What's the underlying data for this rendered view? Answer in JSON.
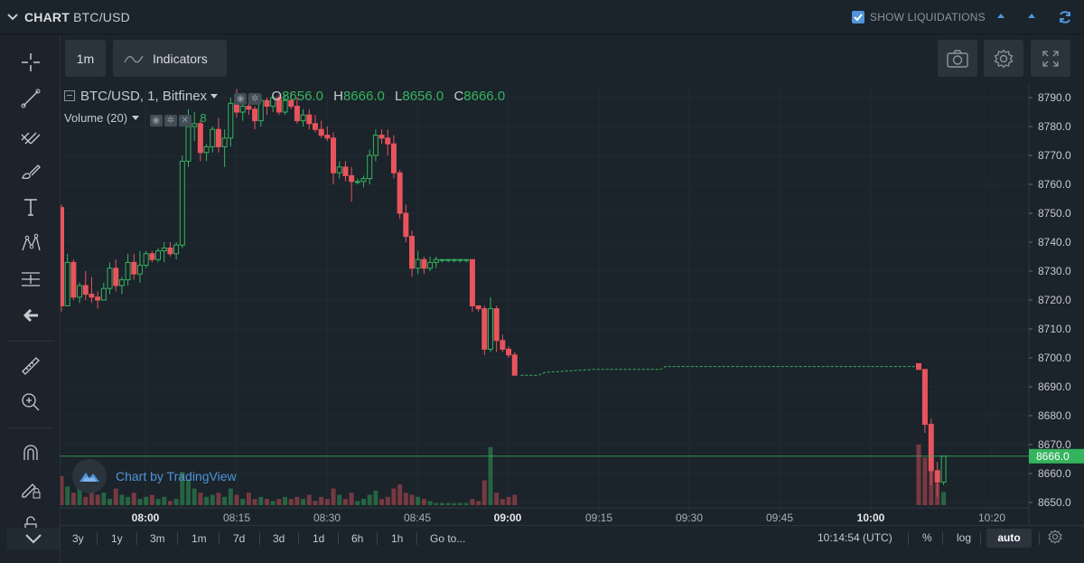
{
  "header": {
    "section": "CHART",
    "pair": "BTC/USD",
    "liquidations_label": "SHOW LIQUIDATIONS",
    "liquidations_checked": true
  },
  "toolbar": {
    "interval_label": "1m",
    "indicators_label": "Indicators"
  },
  "left_tools": [
    "crosshair-icon",
    "trend-line-icon",
    "pitchfork-icon",
    "brush-icon",
    "text-icon",
    "pattern-icon",
    "measure-lines-icon",
    "back-arrow-icon",
    "ruler-icon",
    "zoom-in-icon",
    "magnet-icon",
    "lock-drawing-icon",
    "lock-icon"
  ],
  "legend": {
    "symbol": "BTC/USD, 1, Bitfinex",
    "o_label": "O",
    "o_value": "8656.0",
    "h_label": "H",
    "h_value": "8666.0",
    "l_label": "L",
    "l_value": "8656.0",
    "c_label": "C",
    "c_value": "8666.0",
    "volume_label": "Volume (20)",
    "volume_value": "8"
  },
  "watermark": "Chart by TradingView",
  "bottom": {
    "ranges": [
      "3y",
      "1y",
      "3m",
      "1m",
      "7d",
      "3d",
      "1d",
      "6h",
      "1h"
    ],
    "goto_label": "Go to...",
    "time": "10:14:54 (UTC)",
    "percent_label": "%",
    "log_label": "log",
    "auto_label": "auto"
  },
  "colors": {
    "up": "#35b45e",
    "down": "#e8545c",
    "accent": "#4f95d9",
    "background": "#1b232b"
  },
  "chart_data": {
    "type": "candlestick",
    "y_ticks": [
      "8790.0",
      "8780.0",
      "8770.0",
      "8760.0",
      "8750.0",
      "8740.0",
      "8730.0",
      "8720.0",
      "8710.0",
      "8700.0",
      "8690.0",
      "8680.0",
      "8670.0",
      "8660.0",
      "8650.0"
    ],
    "y_range": [
      8646,
      8793
    ],
    "x_ticks": [
      "08:00",
      "08:15",
      "08:30",
      "08:45",
      "09:00",
      "09:15",
      "09:30",
      "09:45",
      "10:00",
      "10:20"
    ],
    "last_price": "8666.0",
    "last_price_value": 8666.0,
    "candles": [
      [
        8752,
        8753,
        8716,
        8718
      ],
      [
        8718,
        8736,
        8718,
        8733
      ],
      [
        8733,
        8734,
        8720,
        8721
      ],
      [
        8721,
        8726,
        8719,
        8725
      ],
      [
        8725,
        8730,
        8720,
        8722
      ],
      [
        8722,
        8728,
        8719,
        8721
      ],
      [
        8721,
        8723,
        8717,
        8720
      ],
      [
        8720,
        8726,
        8720,
        8724
      ],
      [
        8724,
        8733,
        8722,
        8731
      ],
      [
        8731,
        8734,
        8723,
        8725
      ],
      [
        8725,
        8728,
        8722,
        8727
      ],
      [
        8727,
        8736,
        8725,
        8733
      ],
      [
        8733,
        8736,
        8727,
        8729
      ],
      [
        8729,
        8737,
        8726,
        8732
      ],
      [
        8732,
        8737,
        8731,
        8736
      ],
      [
        8736,
        8737,
        8733,
        8734
      ],
      [
        8734,
        8738,
        8733,
        8737
      ],
      [
        8737,
        8740,
        8733,
        8738
      ],
      [
        8738,
        8740,
        8735,
        8736
      ],
      [
        8736,
        8740,
        8734,
        8739
      ],
      [
        8739,
        8770,
        8738,
        8768
      ],
      [
        8768,
        8786,
        8766,
        8780
      ],
      [
        8780,
        8785,
        8775,
        8781
      ],
      [
        8781,
        8782,
        8768,
        8771
      ],
      [
        8771,
        8774,
        8768,
        8773
      ],
      [
        8773,
        8780,
        8771,
        8779
      ],
      [
        8779,
        8783,
        8771,
        8773
      ],
      [
        8773,
        8779,
        8766,
        8776
      ],
      [
        8776,
        8790,
        8773,
        8788
      ],
      [
        8788,
        8793,
        8783,
        8785
      ],
      [
        8785,
        8791,
        8782,
        8787
      ],
      [
        8787,
        8790,
        8784,
        8786
      ],
      [
        8786,
        8787,
        8779,
        8782
      ],
      [
        8782,
        8791,
        8780,
        8789
      ],
      [
        8789,
        8790,
        8784,
        8787
      ],
      [
        8787,
        8791,
        8785,
        8790
      ],
      [
        8790,
        8791,
        8784,
        8785
      ],
      [
        8785,
        8791,
        8784,
        8789
      ],
      [
        8789,
        8792,
        8786,
        8787
      ],
      [
        8787,
        8790,
        8781,
        8782
      ],
      [
        8782,
        8786,
        8780,
        8784
      ],
      [
        8784,
        8786,
        8779,
        8781
      ],
      [
        8781,
        8784,
        8778,
        8779
      ],
      [
        8779,
        8782,
        8776,
        8777
      ],
      [
        8777,
        8780,
        8775,
        8776
      ],
      [
        8776,
        8778,
        8760,
        8764
      ],
      [
        8764,
        8768,
        8762,
        8766
      ],
      [
        8766,
        8768,
        8761,
        8763
      ],
      [
        8763,
        8766,
        8754,
        8761
      ],
      [
        8761,
        8762,
        8760,
        8761
      ],
      [
        8761,
        8763,
        8759,
        8762
      ],
      [
        8762,
        8772,
        8760,
        8770
      ],
      [
        8770,
        8779,
        8768,
        8777
      ],
      [
        8777,
        8779,
        8774,
        8776
      ],
      [
        8776,
        8779,
        8770,
        8774
      ],
      [
        8774,
        8777,
        8762,
        8764
      ],
      [
        8764,
        8765,
        8748,
        8750
      ],
      [
        8750,
        8753,
        8740,
        8742
      ],
      [
        8742,
        8744,
        8728,
        8731
      ],
      [
        8731,
        8737,
        8729,
        8734
      ],
      [
        8734,
        8735,
        8729,
        8731
      ],
      [
        8731,
        8735,
        8730,
        8733
      ],
      [
        8733,
        8735,
        8731,
        8734
      ],
      [
        8734,
        8734,
        8733,
        8734
      ],
      [
        8734,
        8734,
        8733,
        8734
      ],
      [
        8734,
        8734,
        8733,
        8734
      ],
      [
        8734,
        8734,
        8733,
        8734
      ],
      [
        8734,
        8734,
        8733,
        8734
      ],
      [
        8734,
        8734,
        8716,
        8718
      ],
      [
        8718,
        8718,
        8716,
        8717
      ],
      [
        8717,
        8718,
        8701,
        8703
      ],
      [
        8703,
        8721,
        8702,
        8717
      ],
      [
        8717,
        8718,
        8702,
        8706
      ],
      [
        8706,
        8708,
        8702,
        8703
      ],
      [
        8703,
        8704,
        8700,
        8701
      ],
      [
        8701,
        8702,
        8694,
        8694
      ]
    ],
    "flat_segments": [
      [
        8694,
        8694
      ],
      [
        8694,
        8695
      ],
      [
        8695,
        8696
      ],
      [
        8696,
        8697
      ],
      [
        8697,
        8697
      ]
    ],
    "late_candles": [
      [
        8698,
        8698,
        8696,
        8696
      ],
      [
        8696,
        8696,
        8674,
        8677
      ],
      [
        8677,
        8679,
        8656,
        8661
      ],
      [
        8661,
        8664,
        8652,
        8657
      ],
      [
        8657,
        8666,
        8656,
        8666
      ]
    ]
  }
}
